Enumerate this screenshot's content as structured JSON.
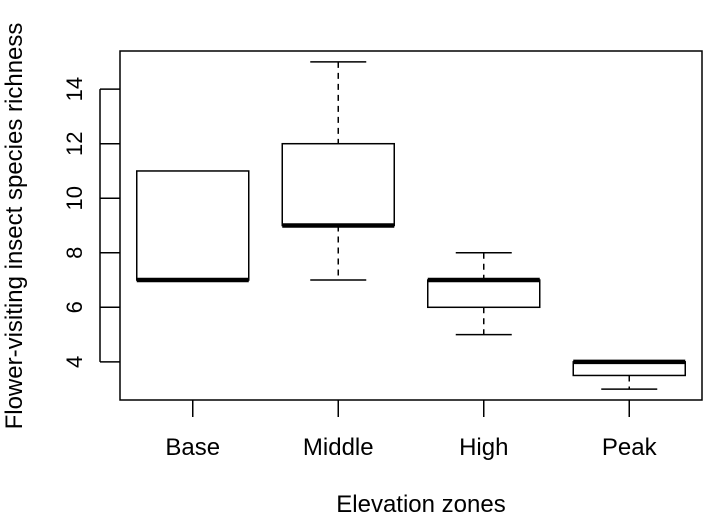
{
  "chart_data": {
    "type": "box",
    "title": "",
    "xlabel": "Elevation zones",
    "ylabel": "Flower-visiting insect species richness",
    "ylim": [
      2.6,
      15.4
    ],
    "yticks": [
      4,
      6,
      8,
      10,
      12,
      14
    ],
    "grid": false,
    "legend": "none",
    "categories": [
      "Base",
      "Middle",
      "High",
      "Peak"
    ],
    "boxes": [
      {
        "category": "Base",
        "min": 7,
        "q1": 7,
        "median": 7,
        "q3": 11,
        "max": 11
      },
      {
        "category": "Middle",
        "min": 7,
        "q1": 9,
        "median": 9,
        "q3": 12,
        "max": 15
      },
      {
        "category": "High",
        "min": 5,
        "q1": 6,
        "median": 7,
        "q3": 7,
        "max": 8
      },
      {
        "category": "Peak",
        "min": 3,
        "q1": 3.5,
        "median": 4,
        "q3": 4,
        "max": 4
      }
    ]
  }
}
